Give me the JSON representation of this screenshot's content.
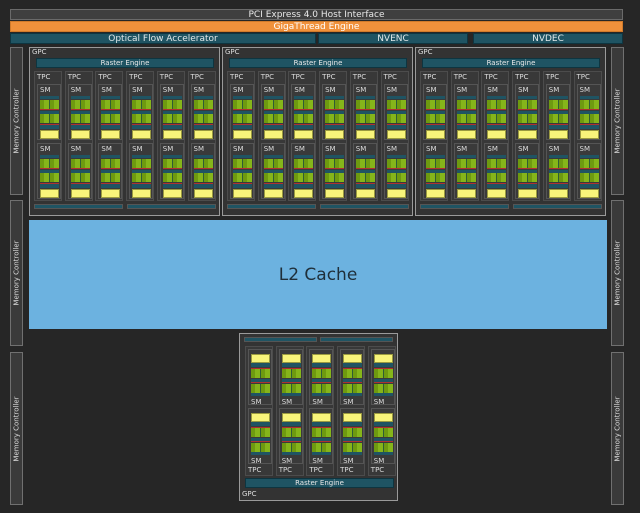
{
  "host_interface": "PCI Express 4.0 Host Interface",
  "gigathread": "GigaThread Engine",
  "engines": {
    "ofa": "Optical Flow Accelerator",
    "nvenc": "NVENC",
    "nvdec": "NVDEC"
  },
  "memory_controller": "Memory Controller",
  "l2_cache": "L2 Cache",
  "gpc": {
    "label": "GPC",
    "raster": "Raster Engine",
    "tpc": "TPC",
    "sm": "SM"
  },
  "colors": {
    "gigathread": "#f0913b",
    "engine": "#1f5463",
    "l2": "#6cb2e0",
    "cores": "#85b51a",
    "cache": "#f8f47a"
  }
}
